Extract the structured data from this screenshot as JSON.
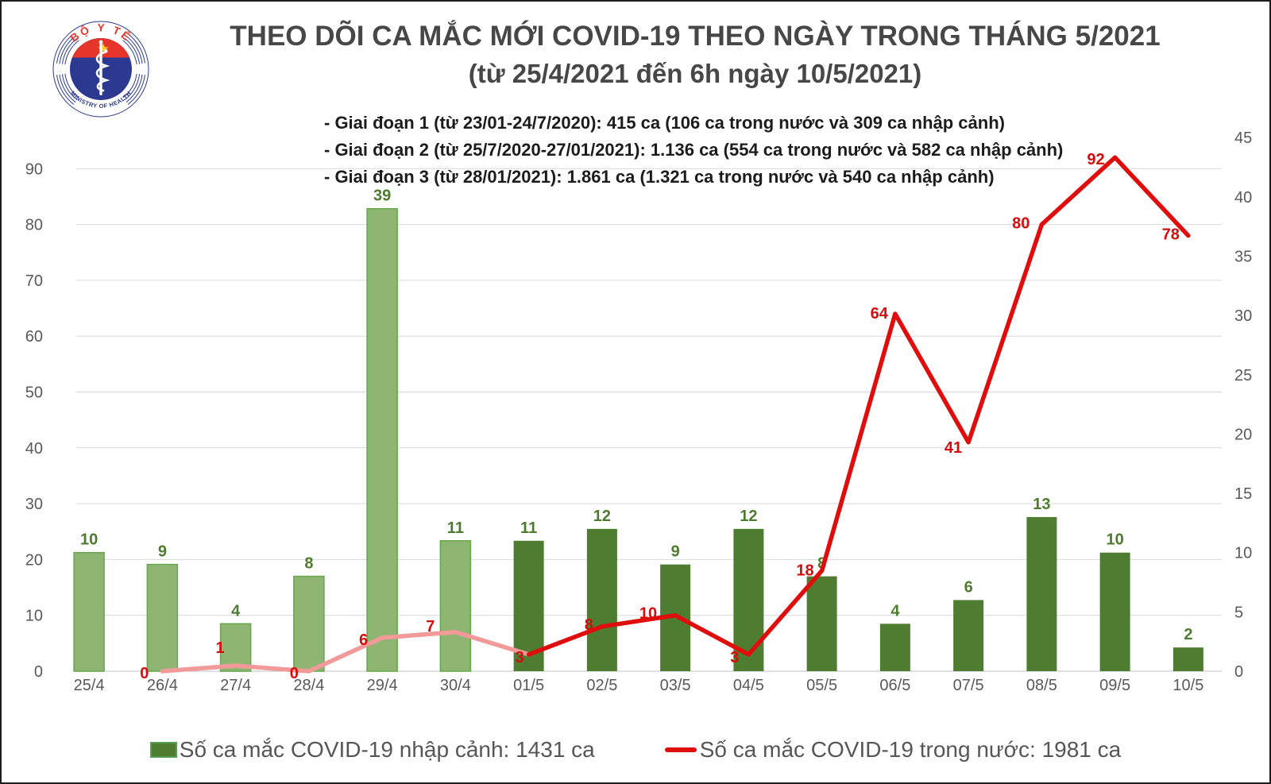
{
  "logo": {
    "top_text": "BỘ Y TẾ",
    "bottom_text": "MINISTRY OF HEALTH",
    "colors": {
      "blue": "#2b3990",
      "red": "#e5352b",
      "star_yellow": "#ffd100"
    }
  },
  "title": {
    "line1": "THEO DÕI CA MẮC MỚI COVID-19 THEO NGÀY TRONG THÁNG 5/2021",
    "line2": "(từ 25/4/2021 đến 6h ngày 10/5/2021)"
  },
  "annotations": [
    "- Giai đoạn 1 (từ 23/01-24/7/2020): 415 ca (106 ca trong nước và 309 ca nhập cảnh)",
    "- Giai đoạn 2 (từ 25/7/2020-27/01/2021): 1.136 ca (554 ca trong nước và 582 ca nhập cảnh)",
    "- Giai đoạn 3 (từ 28/01/2021): 1.861 ca (1.321 ca trong nước và 540 ca nhập cảnh)"
  ],
  "chart_data": {
    "type": "bar+line combo",
    "categories": [
      "25/4",
      "26/4",
      "27/4",
      "28/4",
      "29/4",
      "30/4",
      "01/5",
      "02/5",
      "03/5",
      "04/5",
      "05/5",
      "06/5",
      "07/5",
      "08/5",
      "09/5",
      "10/5"
    ],
    "april_slots": 6,
    "series": [
      {
        "name": "Số ca mắc COVID-19 nhập cảnh",
        "type": "bar",
        "axis": "right",
        "values": [
          10,
          9,
          4,
          8,
          39,
          11,
          11,
          12,
          9,
          12,
          8,
          4,
          6,
          13,
          10,
          2
        ],
        "april_fill": "#8fb573",
        "april_border": "#6aa850",
        "may_fill": "#4e7d31",
        "label_color": "#4e7b2f"
      },
      {
        "name": "Số ca mắc COVID-19 trong nước",
        "type": "line",
        "axis": "left",
        "values": [
          null,
          0,
          1,
          0,
          6,
          7,
          3,
          8,
          10,
          3,
          18,
          64,
          41,
          80,
          92,
          78
        ],
        "april_color": "#f29999",
        "may_color": "#e00d0d",
        "label_color": "#d60b0b"
      }
    ],
    "left_axis": {
      "min": 0,
      "max": 90,
      "step": 10,
      "tick_color": "#595959"
    },
    "right_axis": {
      "min": 0,
      "max": 45,
      "step": 5,
      "tick_color": "#595959"
    },
    "grid": {
      "show": true,
      "color": "#d9d9d9",
      "baseline_color": "#c0c0c0"
    },
    "legend_position": "bottom",
    "legend": [
      {
        "swatch": "bar",
        "color": "#4e7d31",
        "border": "#55a055",
        "label": "Số ca mắc COVID-19 nhập cảnh: 1431 ca"
      },
      {
        "swatch": "line",
        "color": "#e00d0d",
        "label": "Số ca mắc COVID-19 trong nước: 1981 ca"
      }
    ]
  }
}
